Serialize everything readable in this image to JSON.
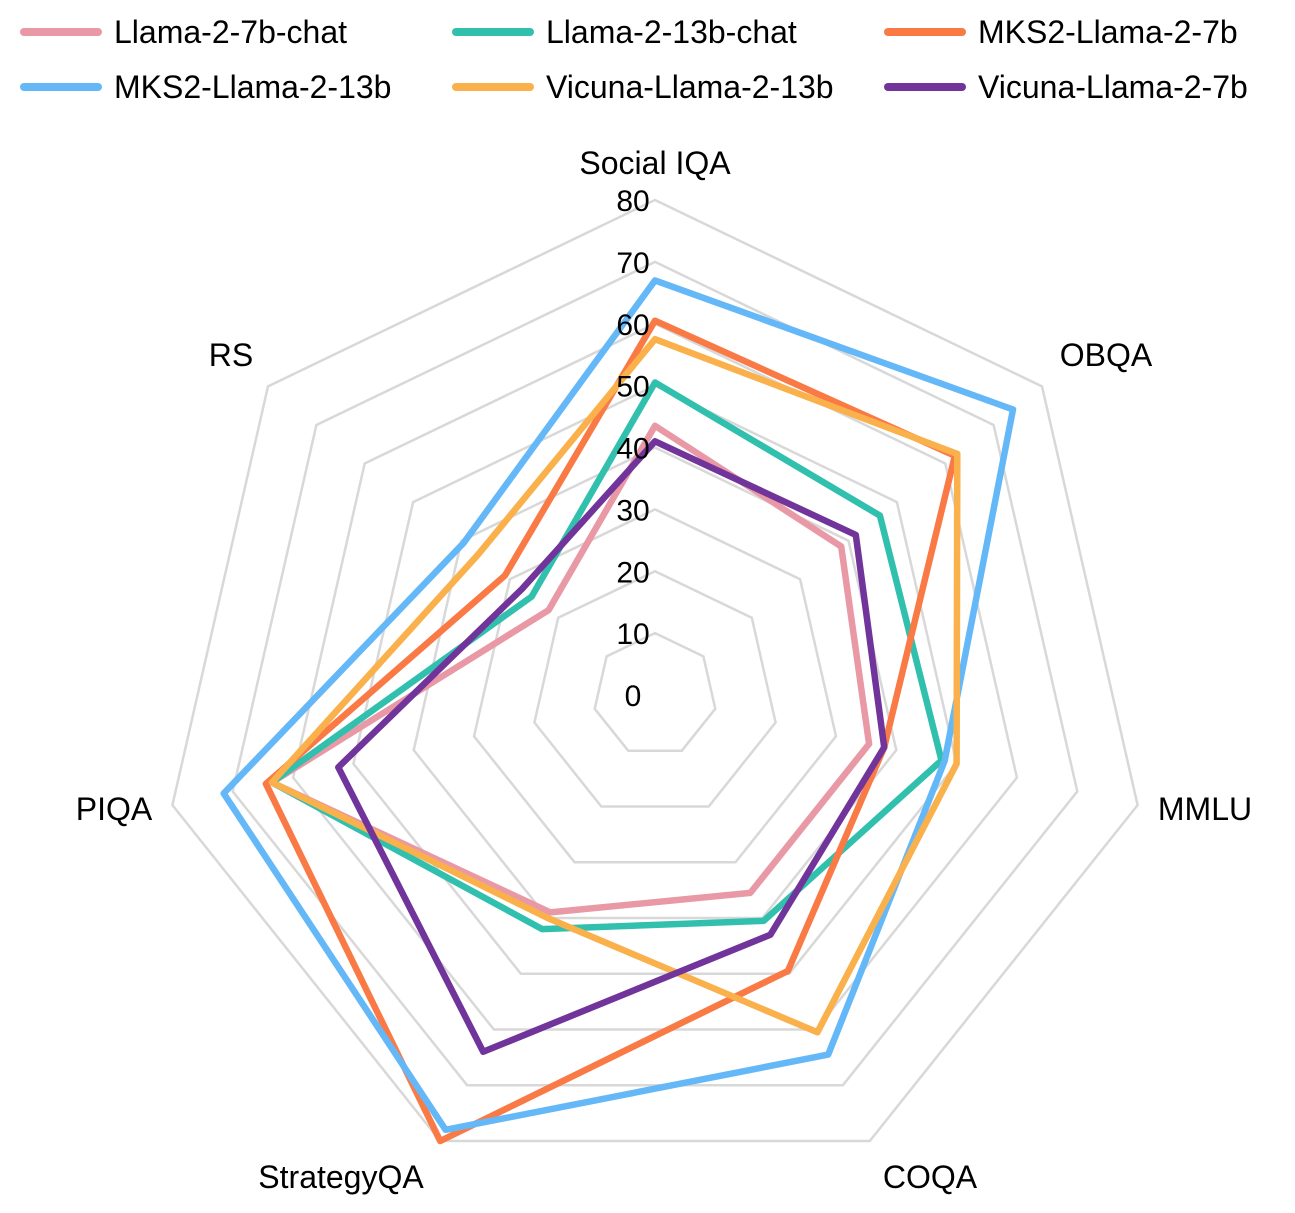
{
  "chart_data": {
    "type": "radar",
    "axes": [
      "Social IQA",
      "OBQA",
      "MMLU",
      "COQA",
      "StrategyQA",
      "PIQA",
      "RS"
    ],
    "rlim": [
      0,
      80
    ],
    "ticks": [
      0,
      10,
      20,
      30,
      40,
      50,
      60,
      70,
      80
    ],
    "tick_labels": [
      "0",
      "10",
      "20",
      "30",
      "40",
      "50",
      "60",
      "70",
      "80"
    ],
    "grid": true,
    "legend_position": "top",
    "series": [
      {
        "name": "Llama-2-7b-chat",
        "color": "#E899A5",
        "values": [
          43.5,
          38.5,
          35.5,
          35.5,
          39.0,
          63.5,
          22.0
        ]
      },
      {
        "name": "Llama-2-13b-chat",
        "color": "#32C0AE",
        "values": [
          50.5,
          46.5,
          47.5,
          40.5,
          42.0,
          63.5,
          25.5
        ]
      },
      {
        "name": "MKS2-Llama-2-7b",
        "color": "#FA7A45",
        "values": [
          60.5,
          62.0,
          38.0,
          49.5,
          80.0,
          64.5,
          31.0
        ]
      },
      {
        "name": "MKS2-Llama-2-13b",
        "color": "#65B8F8",
        "values": [
          67.0,
          74.0,
          48.0,
          64.5,
          78.0,
          71.5,
          39.5
        ]
      },
      {
        "name": "Vicuna-Llama-2-13b",
        "color": "#FAB04B",
        "values": [
          57.5,
          62.5,
          50.0,
          60.5,
          40.0,
          63.5,
          36.5
        ]
      },
      {
        "name": "Vicuna-Llama-2-7b",
        "color": "#70349A",
        "values": [
          41.0,
          41.5,
          38.0,
          43.0,
          64.0,
          52.5,
          27.5
        ]
      }
    ]
  }
}
